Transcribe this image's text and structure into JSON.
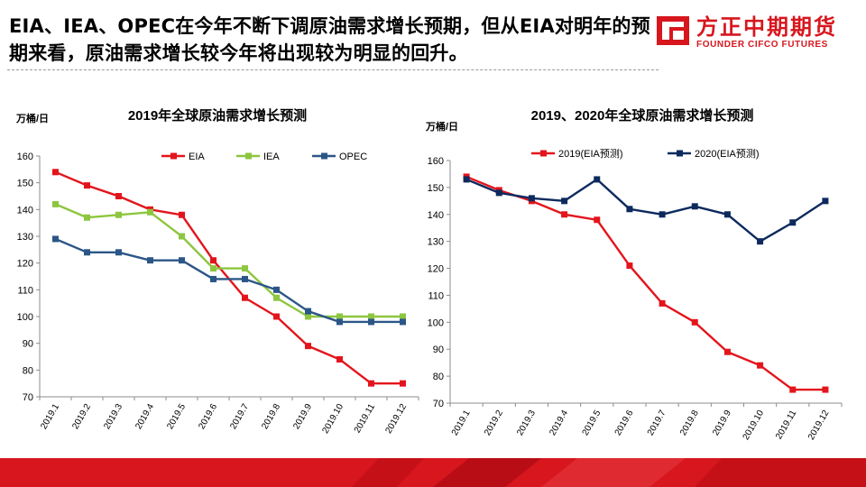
{
  "headline": "EIA、IEA、OPEC在今年不断下调原油需求增长预期，但从EIA对明年的预期来看，原油需求增长较今年将出现较为明显的回升。",
  "logo": {
    "cn": "方正中期期货",
    "en": "FOUNDER CIFCO FUTURES",
    "color": "#d7161e",
    "name": "founder-cifco-logo-icon"
  },
  "chart_data": [
    {
      "type": "line",
      "title": "2019年全球原油需求增长预测",
      "ylabel": "万桶/日",
      "xlabel": "",
      "ylim": [
        70,
        160
      ],
      "yticks": [
        "160",
        "150",
        "140",
        "130",
        "120",
        "110",
        "100",
        "90",
        "80",
        "70"
      ],
      "categories": [
        "2019.1",
        "2019.2",
        "2019.3",
        "2019.4",
        "2019.5",
        "2019.6",
        "2019.7",
        "2019.8",
        "2019.9",
        "2019.10",
        "2019.11",
        "2019.12"
      ],
      "legend_position": "top",
      "grid": false,
      "series": [
        {
          "name": "EIA",
          "color": "#e3151c",
          "values": [
            154,
            149,
            145,
            140,
            138,
            121,
            107,
            100,
            89,
            84,
            75,
            75
          ]
        },
        {
          "name": "IEA",
          "color": "#8dc63f",
          "values": [
            142,
            137,
            138,
            139,
            130,
            118,
            118,
            107,
            100,
            100,
            100,
            100
          ]
        },
        {
          "name": "OPEC",
          "color": "#2c5687",
          "values": [
            129,
            124,
            124,
            121,
            121,
            114,
            114,
            110,
            102,
            98,
            98,
            98
          ]
        }
      ]
    },
    {
      "type": "line",
      "title": "2019、2020年全球原油需求增长预测",
      "ylabel": "万桶/日",
      "xlabel": "",
      "ylim": [
        70,
        160
      ],
      "yticks": [
        "160",
        "150",
        "140",
        "130",
        "120",
        "110",
        "100",
        "90",
        "80",
        "70"
      ],
      "categories": [
        "2019.1",
        "2019.2",
        "2019.3",
        "2019.4",
        "2019.5",
        "2019.6",
        "2019.7",
        "2019.8",
        "2019.9",
        "2019.10",
        "2019.11",
        "2019.12"
      ],
      "legend_position": "top",
      "grid": false,
      "series": [
        {
          "name": "2019(EIA预测)",
          "color": "#e3151c",
          "values": [
            154,
            149,
            145,
            140,
            138,
            121,
            107,
            100,
            89,
            84,
            75,
            75
          ]
        },
        {
          "name": "2020(EIA预测)",
          "color": "#0d2a5e",
          "values": [
            153,
            148,
            146,
            145,
            153,
            142,
            140,
            143,
            140,
            130,
            137,
            145
          ]
        }
      ]
    }
  ]
}
